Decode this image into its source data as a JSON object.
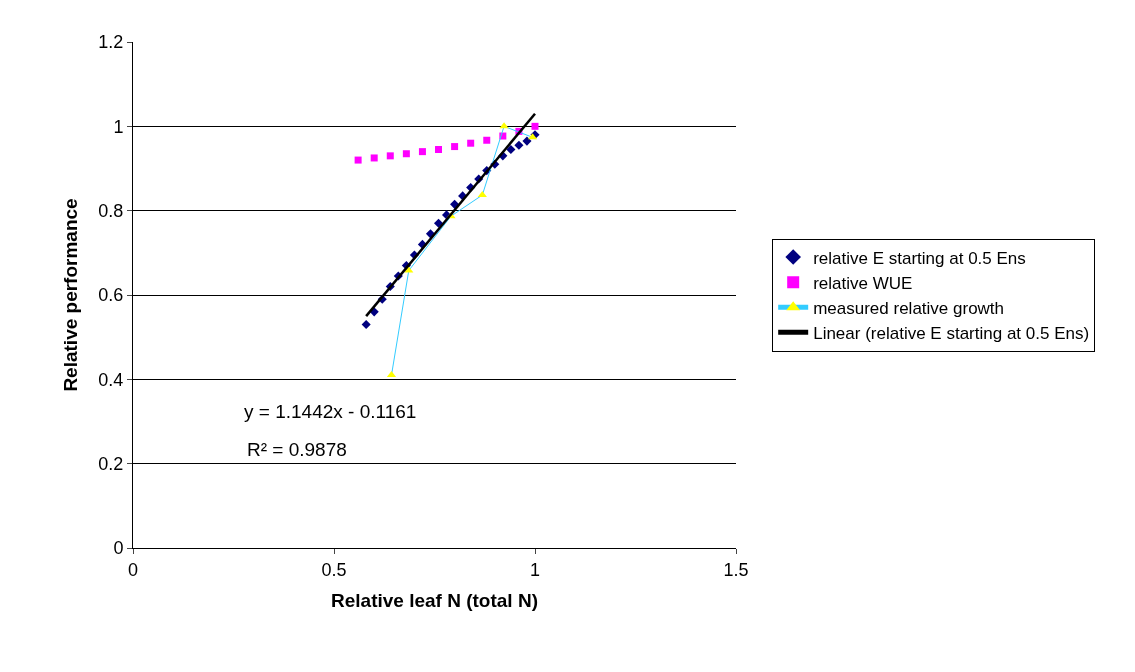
{
  "chart_data": {
    "type": "scatter",
    "xlabel": "Relative leaf N (total N)",
    "ylabel": "Relative performance",
    "xlim": [
      0,
      1.5
    ],
    "xticks": [
      0,
      0.5,
      1,
      1.5
    ],
    "ylim": [
      0,
      1.2
    ],
    "yticks": [
      0,
      0.2,
      0.4,
      0.6,
      0.8,
      1,
      1.2
    ],
    "grid": "y",
    "legend": "right",
    "annotations": [
      "y = 1.1442x - 0.1161",
      "R² = 0.9878"
    ],
    "series": [
      {
        "name": "relative E starting at 0.5 Ens",
        "marker": "diamond",
        "color": "#000080",
        "x": [
          0.58,
          0.6,
          0.62,
          0.64,
          0.66,
          0.68,
          0.7,
          0.72,
          0.74,
          0.76,
          0.78,
          0.8,
          0.82,
          0.84,
          0.86,
          0.88,
          0.9,
          0.92,
          0.94,
          0.96,
          0.98,
          1.0
        ],
        "values": [
          0.53,
          0.56,
          0.59,
          0.62,
          0.645,
          0.67,
          0.695,
          0.72,
          0.745,
          0.77,
          0.79,
          0.815,
          0.835,
          0.855,
          0.875,
          0.895,
          0.91,
          0.93,
          0.945,
          0.955,
          0.965,
          0.98
        ]
      },
      {
        "name": "relative WUE",
        "marker": "square",
        "color": "#ff00ff",
        "x": [
          0.56,
          0.6,
          0.64,
          0.68,
          0.72,
          0.76,
          0.8,
          0.84,
          0.88,
          0.92,
          0.96,
          1.0
        ],
        "values": [
          0.92,
          0.925,
          0.93,
          0.935,
          0.94,
          0.945,
          0.952,
          0.96,
          0.967,
          0.977,
          0.988,
          1.0
        ]
      },
      {
        "name": "measured relative growth",
        "type": "line",
        "marker": "triangle",
        "color": "#33ccff",
        "colors": [
          "#ffff00",
          "#ffff00",
          "#ffff00",
          "#ffff00",
          "#ffff00",
          "#ffff00"
        ],
        "x": [
          0.643,
          0.686,
          0.791,
          0.869,
          0.923,
          0.994
        ],
        "values": [
          0.41,
          0.658,
          0.787,
          0.837,
          1.0,
          0.974
        ]
      },
      {
        "name": "Linear (relative E starting at 0.5 Ens)",
        "type": "line",
        "marker": "none",
        "color": "#000000",
        "x": [
          0.58,
          1.0
        ],
        "values": [
          0.55,
          1.03
        ]
      }
    ]
  }
}
